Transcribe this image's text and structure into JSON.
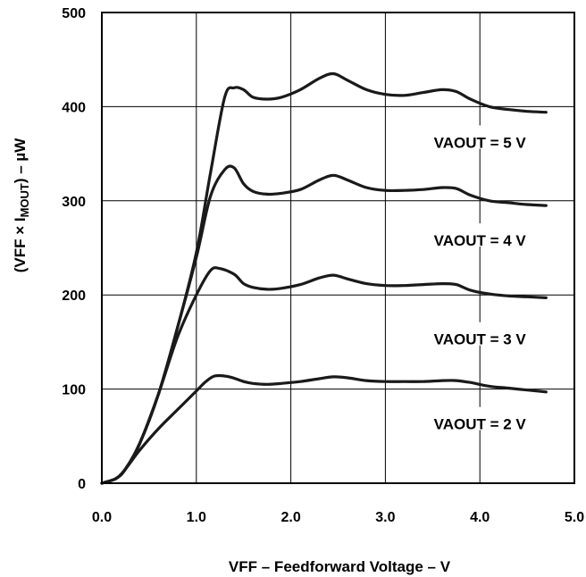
{
  "chart_data": {
    "type": "line",
    "title": "",
    "xlabel": "VFF – Feedforward Voltage – V",
    "ylabel": "(VFF × IMOUT) – µW",
    "ylabel_parts": {
      "pre": "(VFF × I",
      "sub": "MOUT",
      "post": ") – µW"
    },
    "xlim": [
      0,
      5
    ],
    "ylim": [
      0,
      500
    ],
    "grid": true,
    "xticks": [
      0,
      1,
      2,
      3,
      4,
      5
    ],
    "xtick_labels": [
      "0.0",
      "1.0",
      "2.0",
      "3.0",
      "4.0",
      "5.0"
    ],
    "yticks": [
      0,
      100,
      200,
      300,
      400,
      500
    ],
    "ytick_labels": [
      "0",
      "100",
      "200",
      "300",
      "400",
      "500"
    ],
    "line_color": "#1a1a1a",
    "grid_color": "#000000",
    "series": [
      {
        "name": "VAOUT = 5 V",
        "x": [
          0.0,
          0.15,
          0.25,
          0.4,
          0.6,
          0.8,
          1.0,
          1.15,
          1.3,
          1.4,
          1.5,
          1.6,
          1.75,
          1.9,
          2.1,
          2.3,
          2.45,
          2.6,
          2.8,
          3.0,
          3.2,
          3.4,
          3.6,
          3.75,
          3.9,
          4.1,
          4.3,
          4.5,
          4.7
        ],
        "y": [
          0,
          5,
          15,
          42,
          95,
          165,
          245,
          330,
          410,
          420,
          418,
          410,
          408,
          410,
          418,
          430,
          435,
          428,
          418,
          413,
          412,
          415,
          418,
          416,
          408,
          400,
          397,
          395,
          394
        ]
      },
      {
        "name": "VAOUT = 4 V",
        "x": [
          0.0,
          0.15,
          0.25,
          0.4,
          0.6,
          0.8,
          1.0,
          1.15,
          1.3,
          1.4,
          1.5,
          1.6,
          1.75,
          1.9,
          2.1,
          2.3,
          2.45,
          2.6,
          2.8,
          3.0,
          3.2,
          3.4,
          3.6,
          3.75,
          3.9,
          4.1,
          4.3,
          4.5,
          4.7
        ],
        "y": [
          0,
          5,
          15,
          42,
          95,
          165,
          240,
          305,
          333,
          335,
          318,
          310,
          307,
          308,
          312,
          322,
          327,
          322,
          314,
          311,
          311,
          312,
          314,
          313,
          306,
          300,
          298,
          296,
          295
        ]
      },
      {
        "name": "VAOUT = 3 V",
        "x": [
          0.0,
          0.15,
          0.25,
          0.4,
          0.6,
          0.8,
          1.0,
          1.15,
          1.25,
          1.4,
          1.5,
          1.6,
          1.75,
          1.9,
          2.1,
          2.3,
          2.45,
          2.6,
          2.8,
          3.0,
          3.2,
          3.4,
          3.6,
          3.75,
          3.9,
          4.1,
          4.3,
          4.5,
          4.7
        ],
        "y": [
          0,
          5,
          15,
          42,
          95,
          155,
          200,
          226,
          228,
          222,
          212,
          208,
          206,
          207,
          211,
          218,
          221,
          217,
          212,
          210,
          210,
          211,
          212,
          211,
          205,
          201,
          199,
          198,
          197
        ]
      },
      {
        "name": "VAOUT = 2 V",
        "x": [
          0.0,
          0.15,
          0.25,
          0.4,
          0.6,
          0.8,
          1.0,
          1.1,
          1.2,
          1.35,
          1.5,
          1.6,
          1.75,
          1.9,
          2.1,
          2.3,
          2.45,
          2.6,
          2.8,
          3.0,
          3.2,
          3.4,
          3.6,
          3.75,
          3.9,
          4.1,
          4.3,
          4.5,
          4.7
        ],
        "y": [
          0,
          5,
          15,
          35,
          58,
          78,
          98,
          108,
          114,
          113,
          108,
          106,
          105,
          106,
          108,
          111,
          113,
          112,
          109,
          108,
          108,
          108,
          109,
          109,
          107,
          103,
          101,
          99,
          97
        ]
      }
    ],
    "annotations": [
      {
        "text": "VAOUT = 5 V",
        "x": 4.0,
        "y": 362
      },
      {
        "text": "VAOUT = 4 V",
        "x": 4.0,
        "y": 258
      },
      {
        "text": "VAOUT = 3 V",
        "x": 4.0,
        "y": 153
      },
      {
        "text": "VAOUT = 2 V",
        "x": 4.0,
        "y": 63
      }
    ]
  }
}
